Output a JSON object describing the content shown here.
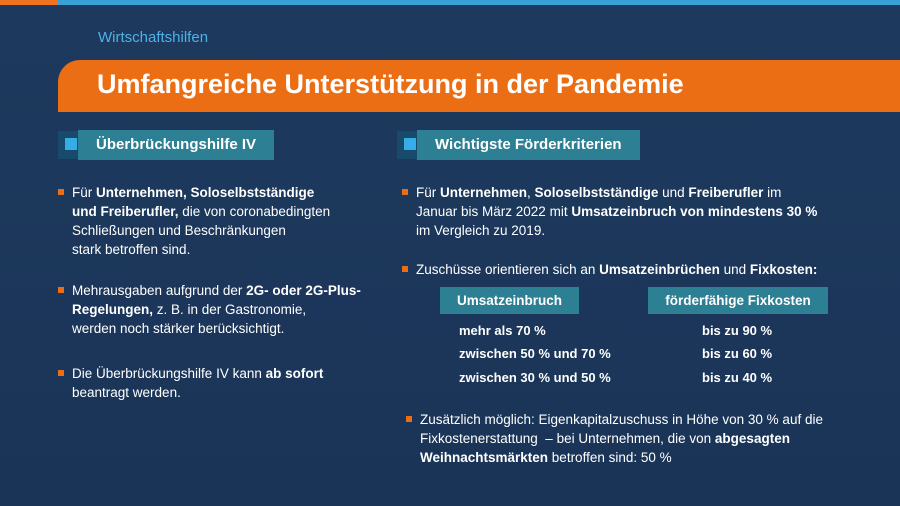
{
  "header": {
    "kicker": "Wirtschaftshilfen",
    "title": "Umfangreiche Unterstützung in der Pandemie"
  },
  "left": {
    "heading": "Überbrückungshilfe IV",
    "bullets": [
      {
        "lines": [
          [
            {
              "t": "Für ",
              "b": false
            },
            {
              "t": "Unternehmen, Soloselbstständige",
              "b": true
            }
          ],
          [
            {
              "t": "und Freiberufler,",
              "b": true
            },
            {
              "t": " die von coronabedingten",
              "b": false
            }
          ],
          [
            {
              "t": "Schließungen und Beschränkungen",
              "b": false
            }
          ],
          [
            {
              "t": "stark betroffen sind.",
              "b": false
            }
          ]
        ]
      },
      {
        "lines": [
          [
            {
              "t": "Mehrausgaben aufgrund der ",
              "b": false
            },
            {
              "t": "2G- oder 2G-Plus-",
              "b": true
            }
          ],
          [
            {
              "t": "Regelungen,",
              "b": true
            },
            {
              "t": " z. B. in der Gastronomie,",
              "b": false
            }
          ],
          [
            {
              "t": "werden noch stärker berücksichtigt.",
              "b": false
            }
          ]
        ]
      },
      {
        "lines": [
          [
            {
              "t": "Die Überbrückungshilfe IV kann ",
              "b": false
            },
            {
              "t": "ab sofort",
              "b": true
            }
          ],
          [
            {
              "t": "beantragt werden.",
              "b": false
            }
          ]
        ]
      }
    ]
  },
  "right": {
    "heading": "Wichtigste Förderkriterien",
    "bullets": [
      {
        "lines": [
          [
            {
              "t": "Für ",
              "b": false
            },
            {
              "t": "Unternehmen",
              "b": true
            },
            {
              "t": ", ",
              "b": false
            },
            {
              "t": "Soloselbstständige",
              "b": true
            },
            {
              "t": " und ",
              "b": false
            },
            {
              "t": "Freiberufler",
              "b": true
            },
            {
              "t": " im",
              "b": false
            }
          ],
          [
            {
              "t": "Januar bis März 2022 mit ",
              "b": false
            },
            {
              "t": "Umsatzeinbruch von mindestens 30 %",
              "b": true
            }
          ],
          [
            {
              "t": "im Vergleich zu 2019.",
              "b": false
            }
          ]
        ]
      },
      {
        "lines": [
          [
            {
              "t": "Zuschüsse orientieren sich an ",
              "b": false
            },
            {
              "t": "Umsatzeinbrüchen",
              "b": true
            },
            {
              "t": " und ",
              "b": false
            },
            {
              "t": "Fixkosten:",
              "b": true
            }
          ]
        ]
      },
      {
        "lines": [
          [
            {
              "t": "Zusätzlich möglich: Eigenkapitalzuschuss in Höhe von 30 % auf die",
              "b": false
            }
          ],
          [
            {
              "t": "Fixkostenerstattung  – bei Unternehmen, die von ",
              "b": false
            },
            {
              "t": "abgesagten",
              "b": true
            }
          ],
          [
            {
              "t": "Weihnachtsmärkten",
              "b": true
            },
            {
              "t": " betroffen sind: 50 %",
              "b": false
            }
          ]
        ]
      }
    ],
    "table": {
      "headers": [
        "Umsatzeinbruch",
        "förderfähige Fixkosten"
      ],
      "rows": [
        [
          "mehr als 70 %",
          "bis zu 90 %"
        ],
        [
          "zwischen 50 % und 70 %",
          "bis zu 60 %"
        ],
        [
          "zwischen 30 % und 50 %",
          "bis zu 40 %"
        ]
      ]
    }
  },
  "colors": {
    "accent_orange": "#ec6e14",
    "accent_blue": "#35aee8",
    "teal": "#2d7f93",
    "background": "#1b3557"
  }
}
